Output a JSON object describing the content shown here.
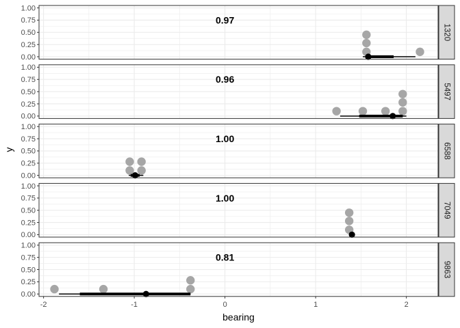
{
  "chart_data": {
    "type": "scatter",
    "title": "",
    "xlabel": "bearing",
    "ylabel": "y",
    "xlim": [
      -2.05,
      2.35
    ],
    "ylim": [
      -0.05,
      1.05
    ],
    "x_ticks": [
      -2,
      -1,
      0,
      1,
      2
    ],
    "x_tick_labels": [
      "-2",
      "-1",
      "0",
      "1",
      "2"
    ],
    "y_ticks": [
      0,
      0.25,
      0.5,
      0.75,
      1
    ],
    "y_tick_labels": [
      "0.00",
      "0.25",
      "0.50",
      "0.75",
      "1.00"
    ],
    "grid": true,
    "colors": {
      "points": "#a6a6a6",
      "summary": "#000000",
      "strip_fill": "#d9d9d9",
      "grid": "#ebebeb"
    },
    "panels": [
      {
        "strip": "1320",
        "label": "0.97",
        "points": [
          [
            1.56,
            0.45
          ],
          [
            1.56,
            0.28
          ],
          [
            1.56,
            0.1
          ],
          [
            2.15,
            0.1
          ]
        ],
        "summary": {
          "point": 1.58,
          "thick": [
            1.56,
            1.86
          ],
          "thin": [
            1.52,
            2.1
          ]
        }
      },
      {
        "strip": "5497",
        "label": "0.96",
        "points": [
          [
            1.96,
            0.45
          ],
          [
            1.96,
            0.28
          ],
          [
            1.96,
            0.1
          ],
          [
            1.23,
            0.1
          ],
          [
            1.52,
            0.1
          ],
          [
            1.77,
            0.1
          ]
        ],
        "summary": {
          "point": 1.85,
          "thick": [
            1.48,
            1.96
          ],
          "thin": [
            1.27,
            2.0
          ]
        }
      },
      {
        "strip": "6588",
        "label": "1.00",
        "points": [
          [
            -1.05,
            0.28
          ],
          [
            -0.92,
            0.28
          ],
          [
            -1.05,
            0.1
          ],
          [
            -0.92,
            0.1
          ]
        ],
        "summary": {
          "point": -0.99,
          "thick": [
            -1.04,
            -0.94
          ],
          "thin": [
            -1.06,
            -0.9
          ]
        }
      },
      {
        "strip": "7049",
        "label": "1.00",
        "points": [
          [
            1.37,
            0.45
          ],
          [
            1.37,
            0.28
          ],
          [
            1.37,
            0.1
          ]
        ],
        "summary": {
          "point": 1.4,
          "thick": [
            1.38,
            1.41
          ],
          "thin": [
            1.37,
            1.42
          ]
        }
      },
      {
        "strip": "9863",
        "label": "0.81",
        "points": [
          [
            -1.88,
            0.1
          ],
          [
            -1.34,
            0.1
          ],
          [
            -0.38,
            0.28
          ],
          [
            -0.38,
            0.1
          ]
        ],
        "summary": {
          "point": -0.87,
          "thick": [
            -1.6,
            -0.38
          ],
          "thin": [
            -1.83,
            -0.38
          ]
        }
      }
    ]
  }
}
